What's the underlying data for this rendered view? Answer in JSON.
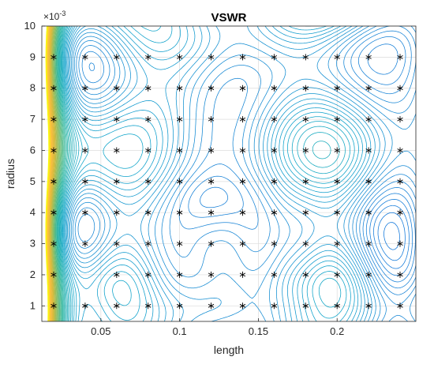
{
  "chart_data": {
    "type": "contour",
    "title": "VSWR",
    "xlabel": "length",
    "ylabel": "radius",
    "y_exponent_label": "×10",
    "y_exponent_power": "-3",
    "xlim": [
      0.0125,
      0.25
    ],
    "ylim": [
      0.5,
      10
    ],
    "x_ticks": [
      0.05,
      0.1,
      0.15,
      0.2
    ],
    "x_tick_labels": [
      "0.05",
      "0.1",
      "0.15",
      "0.2"
    ],
    "y_ticks": [
      1,
      2,
      3,
      4,
      5,
      6,
      7,
      8,
      9,
      10
    ],
    "y_tick_labels": [
      "1",
      "2",
      "3",
      "4",
      "5",
      "6",
      "7",
      "8",
      "9",
      "10"
    ],
    "grid": true,
    "colormap": "parula",
    "contour_color_low": "#3b3bd6",
    "contour_color_high": "#f6e30a",
    "sample_marker": "asterisk",
    "sample_points": {
      "x": [
        0.02,
        0.04,
        0.06,
        0.08,
        0.1,
        0.12,
        0.14,
        0.16,
        0.18,
        0.2,
        0.22,
        0.24
      ],
      "y": [
        1,
        2,
        3,
        4,
        5,
        6,
        7,
        8,
        9
      ],
      "omitted": [
        [
          0.04,
          2
        ]
      ]
    }
  }
}
